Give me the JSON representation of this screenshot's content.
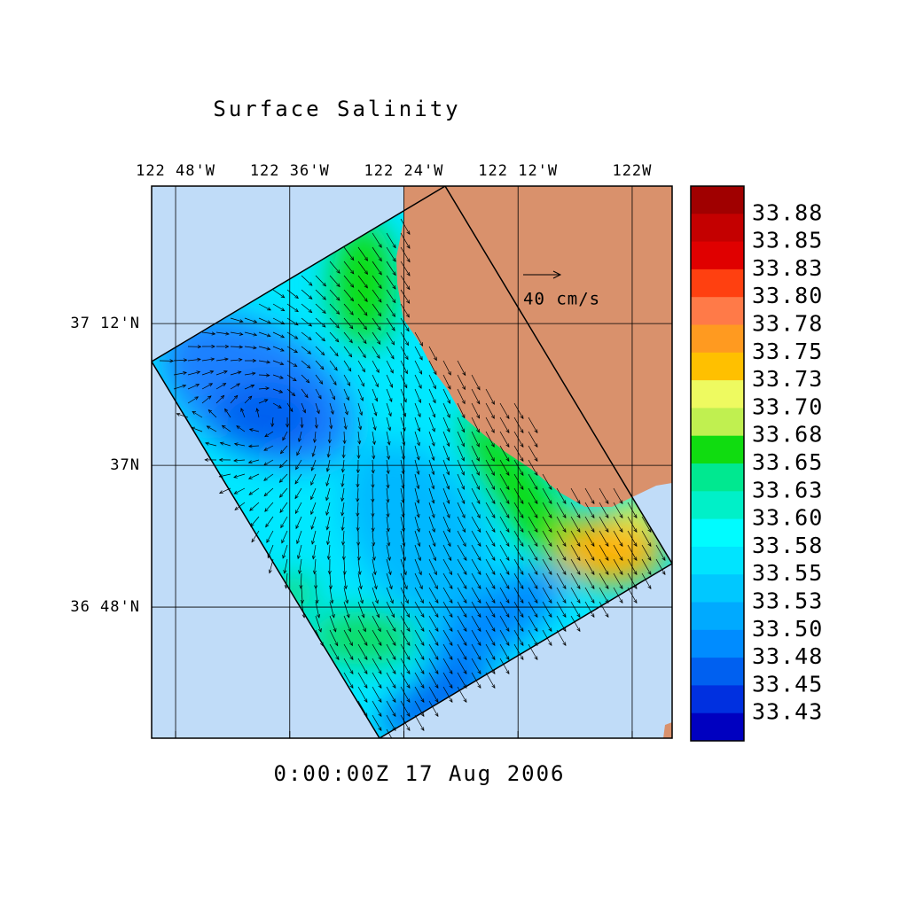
{
  "map": {
    "title": "Surface Salinity",
    "timestamp": "0:00:00Z  17 Aug 2006",
    "vector_key": "40 cm/s",
    "xlim": [
      -122.842,
      -121.93
    ],
    "ylim": [
      36.615,
      37.394
    ],
    "lon_ticks": [
      {
        "value": -122.8,
        "label": "122 48'W"
      },
      {
        "value": -122.6,
        "label": "122 36'W"
      },
      {
        "value": -122.4,
        "label": "122 24'W"
      },
      {
        "value": -122.2,
        "label": "122 12'W"
      },
      {
        "value": -122.0,
        "label": "122W"
      }
    ],
    "lat_ticks": [
      {
        "value": 37.2,
        "label": "37 12'N"
      },
      {
        "value": 37.0,
        "label": "37N"
      },
      {
        "value": 36.8,
        "label": "36 48'N"
      }
    ],
    "colorbar": {
      "levels": [
        33.88,
        33.85,
        33.83,
        {
          "value": 33.8,
          "label": "33.80"
        },
        33.78,
        33.75,
        33.73,
        {
          "value": 33.7,
          "label": "33.70"
        },
        33.68,
        33.65,
        33.63,
        {
          "value": 33.6,
          "label": "33.60"
        },
        33.58,
        33.55,
        33.53,
        {
          "value": 33.5,
          "label": "33.50"
        },
        33.48,
        33.45,
        33.43
      ],
      "colors": [
        "#a00000",
        "#c40000",
        "#e00000",
        "#ff4010",
        "#ff7a48",
        "#ff9a20",
        "#ffc000",
        "#eefa60",
        "#c0f050",
        "#10dc10",
        "#00e890",
        "#00f0c8",
        "#00fcff",
        "#00e4ff",
        "#00c8ff",
        "#00aaff",
        "#008cff",
        "#0060f0",
        "#0030e0",
        "#0000c0"
      ]
    }
  }
}
